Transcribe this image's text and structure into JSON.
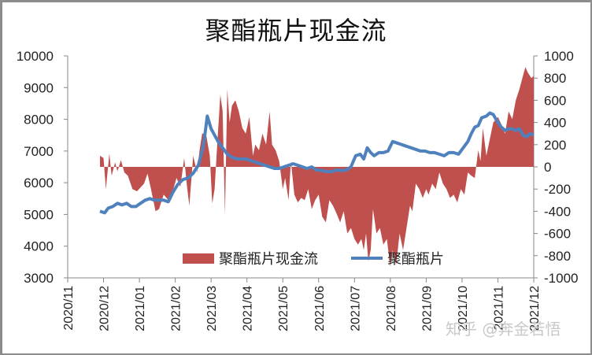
{
  "chart_data": {
    "type": "area+line",
    "title": "聚酯瓶片现金流",
    "xlabel": "",
    "ylabel_left": "",
    "ylabel_right": "",
    "left_axis": {
      "min": 3000,
      "max": 10000,
      "ticks": [
        "10000",
        "9000",
        "8000",
        "7000",
        "6000",
        "5000",
        "4000",
        "3000"
      ]
    },
    "right_axis": {
      "min": -1000,
      "max": 1000,
      "ticks": [
        "1000",
        "800",
        "600",
        "400",
        "200",
        "0",
        "-200",
        "-400",
        "-600",
        "-800",
        "-1000"
      ]
    },
    "x_ticks": [
      "2020/11",
      "2020/12",
      "2021/01",
      "2021/02",
      "2021/03",
      "2021/04",
      "2021/05",
      "2021/06",
      "2021/07",
      "2021/08",
      "2021/09",
      "2021/10",
      "2021/11",
      "2021/12"
    ],
    "legend": {
      "position": "bottom-inside",
      "entries": [
        "聚酯瓶片现金流",
        "聚酯瓶片"
      ]
    },
    "grid": false,
    "series": [
      {
        "name": "聚酯瓶片现金流",
        "axis": "right",
        "type": "area",
        "color": "#c0504d",
        "points": [
          [
            "2020/11/28",
            100
          ],
          [
            "2020/12/01",
            80
          ],
          [
            "2020/12/03",
            -200
          ],
          [
            "2020/12/06",
            120
          ],
          [
            "2020/12/08",
            -80
          ],
          [
            "2020/12/11",
            40
          ],
          [
            "2020/12/13",
            -40
          ],
          [
            "2020/12/16",
            60
          ],
          [
            "2020/12/19",
            -50
          ],
          [
            "2020/12/22",
            -80
          ],
          [
            "2020/12/26",
            -200
          ],
          [
            "2020/12/30",
            -220
          ],
          [
            "2021/01/05",
            -150
          ],
          [
            "2021/01/08",
            -60
          ],
          [
            "2021/01/11",
            -200
          ],
          [
            "2021/01/15",
            -400
          ],
          [
            "2021/01/18",
            -380
          ],
          [
            "2021/01/22",
            -250
          ],
          [
            "2021/01/26",
            -300
          ],
          [
            "2021/01/29",
            -250
          ],
          [
            "2021/02/02",
            -100
          ],
          [
            "2021/02/05",
            -180
          ],
          [
            "2021/02/08",
            80
          ],
          [
            "2021/02/10",
            -160
          ],
          [
            "2021/02/12",
            -350
          ],
          [
            "2021/02/15",
            100
          ],
          [
            "2021/02/18",
            -50
          ],
          [
            "2021/02/20",
            150
          ],
          [
            "2021/02/22",
            300
          ],
          [
            "2021/02/25",
            300
          ],
          [
            "2021/02/28",
            100
          ],
          [
            "2021/03/02",
            -330
          ],
          [
            "2021/03/04",
            -200
          ],
          [
            "2021/03/06",
            150
          ],
          [
            "2021/03/09",
            650
          ],
          [
            "2021/03/11",
            500
          ],
          [
            "2021/03/13",
            -430
          ],
          [
            "2021/03/15",
            700
          ],
          [
            "2021/03/17",
            400
          ],
          [
            "2021/03/19",
            550
          ],
          [
            "2021/03/22",
            600
          ],
          [
            "2021/03/25",
            500
          ],
          [
            "2021/03/28",
            350
          ],
          [
            "2021/03/31",
            300
          ],
          [
            "2021/04/03",
            450
          ],
          [
            "2021/04/06",
            100
          ],
          [
            "2021/04/08",
            200
          ],
          [
            "2021/04/11",
            150
          ],
          [
            "2021/04/14",
            300
          ],
          [
            "2021/04/17",
            200
          ],
          [
            "2021/04/20",
            500
          ],
          [
            "2021/04/22",
            200
          ],
          [
            "2021/04/25",
            150
          ],
          [
            "2021/04/28",
            50
          ],
          [
            "2021/05/01",
            -200
          ],
          [
            "2021/05/03",
            -100
          ],
          [
            "2021/05/06",
            -300
          ],
          [
            "2021/05/08",
            50
          ],
          [
            "2021/05/11",
            -250
          ],
          [
            "2021/05/14",
            -320
          ],
          [
            "2021/05/17",
            -280
          ],
          [
            "2021/05/20",
            -300
          ],
          [
            "2021/05/23",
            -200
          ],
          [
            "2021/05/26",
            -380
          ],
          [
            "2021/05/29",
            -300
          ],
          [
            "2021/06/01",
            -250
          ],
          [
            "2021/06/04",
            -450
          ],
          [
            "2021/06/07",
            -500
          ],
          [
            "2021/06/10",
            -300
          ],
          [
            "2021/06/13",
            -350
          ],
          [
            "2021/06/16",
            -420
          ],
          [
            "2021/06/19",
            -500
          ],
          [
            "2021/06/22",
            -400
          ],
          [
            "2021/06/25",
            -600
          ],
          [
            "2021/06/28",
            -550
          ],
          [
            "2021/07/01",
            -650
          ],
          [
            "2021/07/04",
            -700
          ],
          [
            "2021/07/07",
            -650
          ],
          [
            "2021/07/09",
            -750
          ],
          [
            "2021/07/11",
            -600
          ],
          [
            "2021/07/13",
            -850
          ],
          [
            "2021/07/15",
            -750
          ],
          [
            "2021/07/17",
            -380
          ],
          [
            "2021/07/20",
            -600
          ],
          [
            "2021/07/23",
            -550
          ],
          [
            "2021/07/26",
            -700
          ],
          [
            "2021/07/29",
            -650
          ],
          [
            "2021/08/01",
            -900
          ],
          [
            "2021/08/03",
            -750
          ],
          [
            "2021/08/06",
            -880
          ],
          [
            "2021/08/09",
            -600
          ],
          [
            "2021/08/12",
            -750
          ],
          [
            "2021/08/15",
            -550
          ],
          [
            "2021/08/18",
            -350
          ],
          [
            "2021/08/20",
            -400
          ],
          [
            "2021/08/23",
            -150
          ],
          [
            "2021/08/26",
            -200
          ],
          [
            "2021/08/29",
            -280
          ],
          [
            "2021/09/01",
            -200
          ],
          [
            "2021/09/03",
            -250
          ],
          [
            "2021/09/06",
            -150
          ],
          [
            "2021/09/09",
            -200
          ],
          [
            "2021/09/12",
            -50
          ],
          [
            "2021/09/15",
            -150
          ],
          [
            "2021/09/18",
            -200
          ],
          [
            "2021/09/21",
            -280
          ],
          [
            "2021/09/24",
            -250
          ],
          [
            "2021/09/27",
            -320
          ],
          [
            "2021/09/30",
            -200
          ],
          [
            "2021/10/03",
            -250
          ],
          [
            "2021/10/06",
            -50
          ],
          [
            "2021/10/09",
            -80
          ],
          [
            "2021/10/12",
            -100
          ],
          [
            "2021/10/15",
            150
          ],
          [
            "2021/10/17",
            50
          ],
          [
            "2021/10/19",
            350
          ],
          [
            "2021/10/22",
            100
          ],
          [
            "2021/10/25",
            250
          ],
          [
            "2021/10/28",
            400
          ],
          [
            "2021/11/01",
            450
          ],
          [
            "2021/11/04",
            380
          ],
          [
            "2021/11/07",
            300
          ],
          [
            "2021/11/10",
            500
          ],
          [
            "2021/11/13",
            430
          ],
          [
            "2021/11/16",
            600
          ],
          [
            "2021/11/19",
            700
          ],
          [
            "2021/11/22",
            820
          ],
          [
            "2021/11/24",
            900
          ],
          [
            "2021/11/26",
            850
          ],
          [
            "2021/11/29",
            800
          ],
          [
            "2021/12/01",
            820
          ]
        ]
      },
      {
        "name": "聚酯瓶片",
        "axis": "left",
        "type": "line",
        "color": "#4f81bd",
        "points": [
          [
            "2020/11/28",
            5100
          ],
          [
            "2020/12/02",
            5050
          ],
          [
            "2020/12/05",
            5200
          ],
          [
            "2020/12/09",
            5250
          ],
          [
            "2020/12/13",
            5350
          ],
          [
            "2020/12/17",
            5300
          ],
          [
            "2020/12/21",
            5350
          ],
          [
            "2020/12/25",
            5250
          ],
          [
            "2020/12/29",
            5250
          ],
          [
            "2021/01/02",
            5350
          ],
          [
            "2021/01/06",
            5450
          ],
          [
            "2021/01/10",
            5500
          ],
          [
            "2021/01/14",
            5450
          ],
          [
            "2021/01/18",
            5450
          ],
          [
            "2021/01/22",
            5450
          ],
          [
            "2021/01/26",
            5400
          ],
          [
            "2021/01/30",
            5700
          ],
          [
            "2021/02/03",
            5950
          ],
          [
            "2021/02/07",
            6100
          ],
          [
            "2021/02/11",
            6150
          ],
          [
            "2021/02/15",
            6300
          ],
          [
            "2021/02/19",
            6550
          ],
          [
            "2021/02/23",
            7150
          ],
          [
            "2021/02/26",
            8100
          ],
          [
            "2021/03/01",
            7700
          ],
          [
            "2021/03/04",
            7500
          ],
          [
            "2021/03/07",
            7300
          ],
          [
            "2021/03/11",
            7100
          ],
          [
            "2021/03/15",
            6900
          ],
          [
            "2021/03/19",
            6800
          ],
          [
            "2021/03/23",
            6750
          ],
          [
            "2021/03/27",
            6750
          ],
          [
            "2021/03/31",
            6750
          ],
          [
            "2021/04/04",
            6700
          ],
          [
            "2021/04/08",
            6650
          ],
          [
            "2021/04/12",
            6600
          ],
          [
            "2021/04/16",
            6550
          ],
          [
            "2021/04/20",
            6500
          ],
          [
            "2021/04/24",
            6450
          ],
          [
            "2021/04/28",
            6450
          ],
          [
            "2021/05/02",
            6500
          ],
          [
            "2021/05/06",
            6550
          ],
          [
            "2021/05/10",
            6600
          ],
          [
            "2021/05/14",
            6550
          ],
          [
            "2021/05/18",
            6500
          ],
          [
            "2021/05/22",
            6450
          ],
          [
            "2021/05/26",
            6500
          ],
          [
            "2021/05/30",
            6400
          ],
          [
            "2021/06/04",
            6380
          ],
          [
            "2021/06/08",
            6350
          ],
          [
            "2021/06/12",
            6350
          ],
          [
            "2021/06/16",
            6400
          ],
          [
            "2021/06/20",
            6380
          ],
          [
            "2021/06/24",
            6400
          ],
          [
            "2021/06/28",
            6500
          ],
          [
            "2021/07/02",
            6850
          ],
          [
            "2021/07/06",
            6900
          ],
          [
            "2021/07/09",
            6750
          ],
          [
            "2021/07/12",
            7100
          ],
          [
            "2021/07/15",
            6950
          ],
          [
            "2021/07/18",
            6850
          ],
          [
            "2021/07/22",
            6950
          ],
          [
            "2021/07/26",
            6950
          ],
          [
            "2021/07/30",
            7000
          ],
          [
            "2021/08/03",
            7300
          ],
          [
            "2021/08/07",
            7250
          ],
          [
            "2021/08/11",
            7200
          ],
          [
            "2021/08/15",
            7150
          ],
          [
            "2021/08/19",
            7100
          ],
          [
            "2021/08/23",
            7050
          ],
          [
            "2021/08/27",
            7000
          ],
          [
            "2021/08/31",
            7000
          ],
          [
            "2021/09/04",
            6950
          ],
          [
            "2021/09/08",
            6950
          ],
          [
            "2021/09/12",
            6900
          ],
          [
            "2021/09/16",
            6850
          ],
          [
            "2021/09/20",
            6950
          ],
          [
            "2021/09/24",
            6950
          ],
          [
            "2021/09/28",
            6900
          ],
          [
            "2021/10/02",
            7100
          ],
          [
            "2021/10/06",
            7300
          ],
          [
            "2021/10/09",
            7550
          ],
          [
            "2021/10/12",
            7750
          ],
          [
            "2021/10/15",
            7800
          ],
          [
            "2021/10/18",
            8050
          ],
          [
            "2021/10/22",
            8100
          ],
          [
            "2021/10/25",
            8200
          ],
          [
            "2021/10/28",
            8150
          ],
          [
            "2021/11/01",
            7900
          ],
          [
            "2021/11/04",
            7750
          ],
          [
            "2021/11/07",
            7650
          ],
          [
            "2021/11/10",
            7700
          ],
          [
            "2021/11/13",
            7700
          ],
          [
            "2021/11/16",
            7650
          ],
          [
            "2021/11/19",
            7700
          ],
          [
            "2021/11/22",
            7500
          ],
          [
            "2021/11/25",
            7450
          ],
          [
            "2021/11/28",
            7550
          ],
          [
            "2021/12/01",
            7500
          ]
        ]
      }
    ]
  },
  "watermark": "知乎 @奔金若悟"
}
